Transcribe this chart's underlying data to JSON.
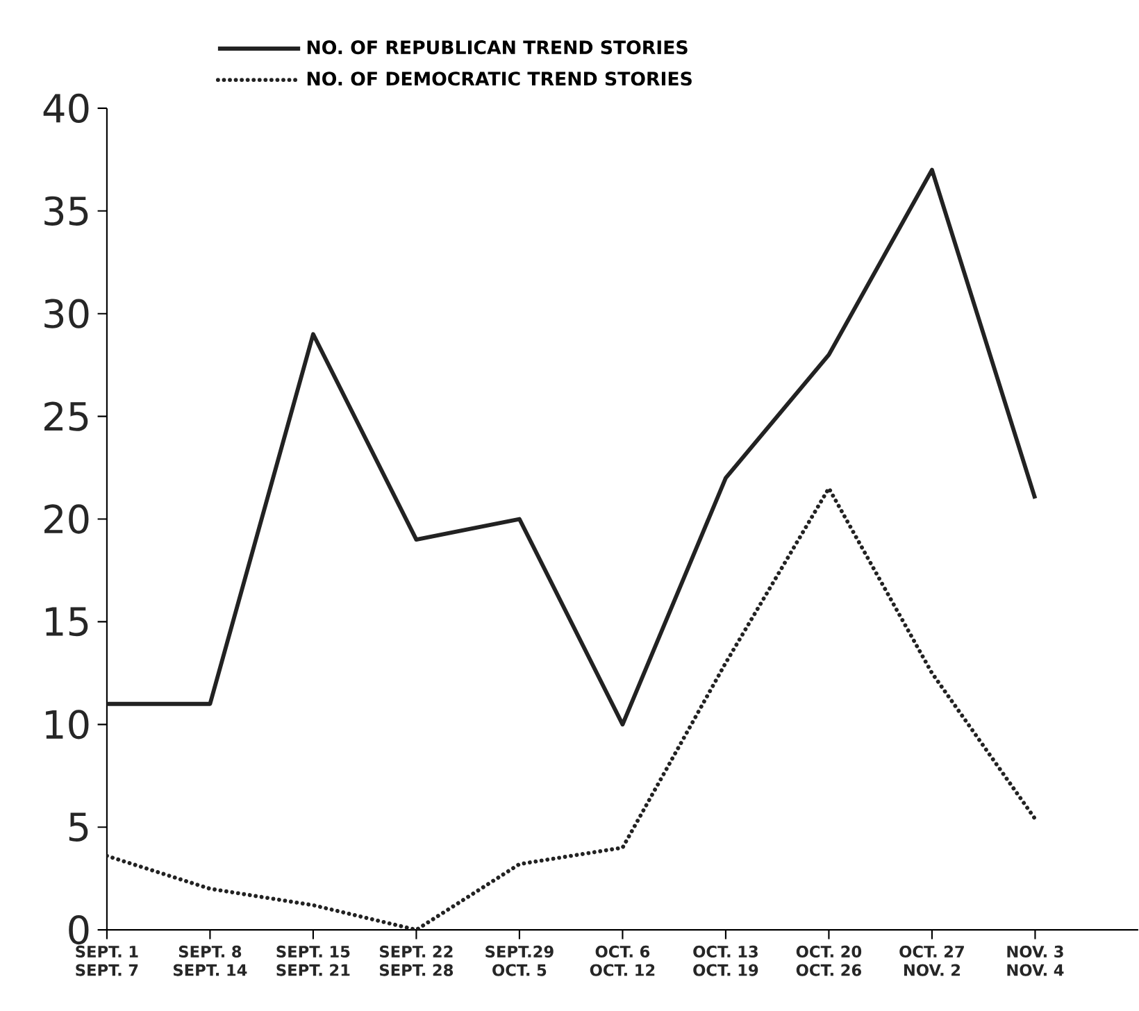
{
  "chart_data": {
    "type": "line",
    "categories": [
      "SEPT. 1 SEPT. 7",
      "SEPT. 8 SEPT. 14",
      "SEPT. 15 SEPT. 21",
      "SEPT. 22 SEPT. 28",
      "SEPT.29 OCT. 5",
      "OCT. 6 OCT. 12",
      "OCT. 13 OCT. 19",
      "OCT. 20 OCT. 26",
      "OCT. 27 NOV. 2",
      "NOV. 3 NOV. 4"
    ],
    "series": [
      {
        "name": "NO. OF REPUBLICAN TREND STORIES",
        "color": "#222222",
        "line_style": "solid",
        "values": [
          11,
          11,
          29,
          19,
          20,
          10,
          22,
          28,
          37,
          21
        ]
      },
      {
        "name": "NO. OF DEMOCRATIC TREND STORIES",
        "color": "#222222",
        "line_style": "dotted",
        "values": [
          3.6,
          2,
          1.2,
          0,
          3.2,
          4,
          13,
          21.5,
          12.5,
          5.4
        ]
      }
    ],
    "ylim": [
      0,
      40
    ],
    "yticks": [
      0,
      5,
      10,
      15,
      20,
      25,
      30,
      35,
      40
    ],
    "legend": "top",
    "grid": false,
    "marker": "none"
  }
}
